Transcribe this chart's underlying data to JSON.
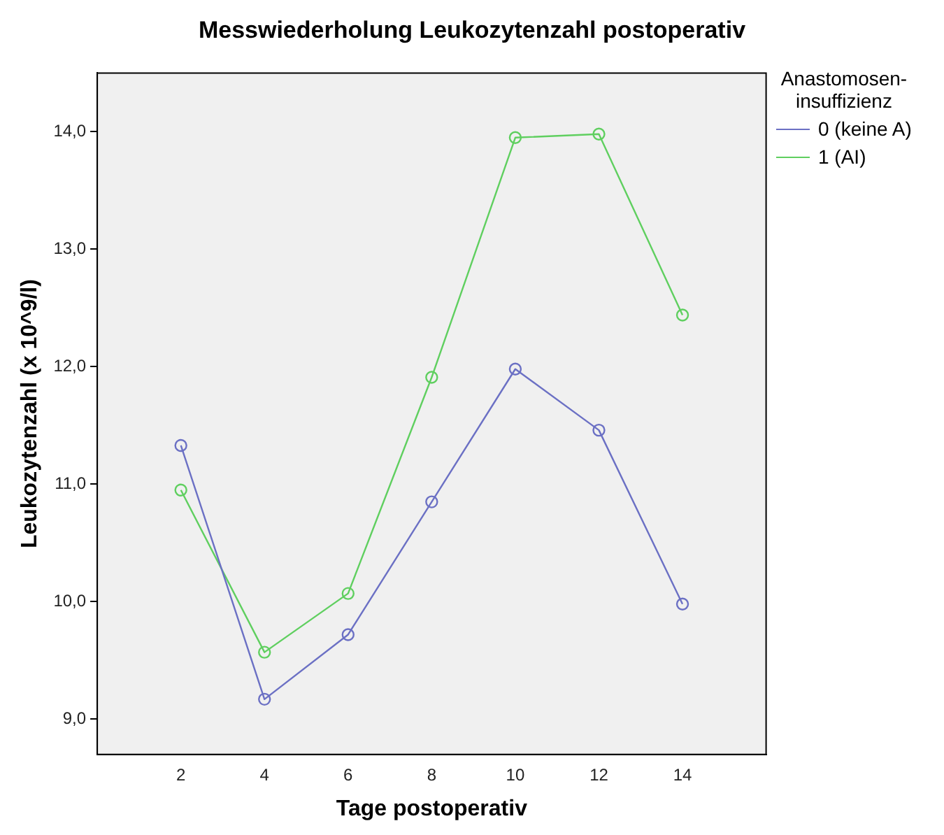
{
  "chart_data": {
    "type": "line",
    "title": "Messwiederholung Leukozytenzahl postoperativ",
    "xlabel": "Tage postoperativ",
    "ylabel": "Leukozytenzahl (x 10^9/l)",
    "legend_title": "Anastomosen-\ninsuffizienz",
    "legend": "top right",
    "marker": "circle",
    "grid": false,
    "x": [
      2,
      4,
      6,
      8,
      10,
      12,
      14
    ],
    "xlim": [
      0,
      16
    ],
    "xticks": [
      2,
      4,
      6,
      8,
      10,
      12,
      14
    ],
    "ylim": [
      8.7,
      14.5
    ],
    "yticks": [
      {
        "value": 9,
        "label": "9,0"
      },
      {
        "value": 10,
        "label": "10,0"
      },
      {
        "value": 11,
        "label": "11,0"
      },
      {
        "value": 12,
        "label": "12,0"
      },
      {
        "value": 13,
        "label": "13,0"
      },
      {
        "value": 14,
        "label": "14,0"
      }
    ],
    "series": [
      {
        "name": "0 (keine A)",
        "color": "#6b70c4",
        "values": [
          11.33,
          9.17,
          9.72,
          10.85,
          11.98,
          11.46,
          9.98
        ]
      },
      {
        "name": "1 (AI)",
        "color": "#5fcf5f",
        "values": [
          10.95,
          9.57,
          10.07,
          11.91,
          13.95,
          13.98,
          12.44
        ]
      }
    ]
  }
}
